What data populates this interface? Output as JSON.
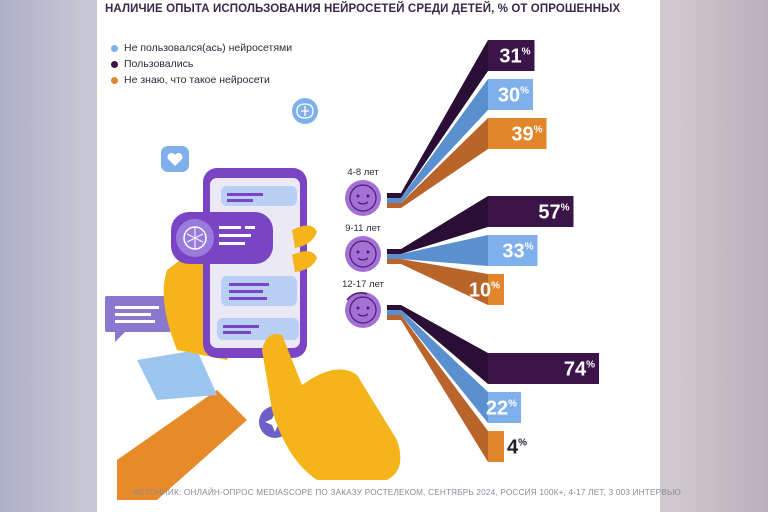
{
  "chart_data": {
    "type": "bar",
    "title": "НАЛИЧИЕ ОПЫТА ИСПОЛЬЗОВАНИЯ НЕЙРОСЕТЕЙ СРЕДИ ДЕТЕЙ, % ОТ ОПРОШЕННЫХ",
    "categories": [
      "4-8 лет",
      "9-11 лет",
      "12-17 лет"
    ],
    "series": [
      {
        "name": "Не пользовался(ась) нейросетями",
        "color": "#7fb0ec",
        "values": [
          30,
          33,
          22
        ]
      },
      {
        "name": "Пользовались",
        "color": "#3b1548",
        "values": [
          31,
          57,
          74
        ]
      },
      {
        "name": "Не знаю, что такое нейросети",
        "color": "#e2862b",
        "values": [
          39,
          10,
          4
        ]
      }
    ],
    "bar_order": [
      "Пользовались",
      "Не пользовался(ась) нейросетями",
      "Не знаю, что такое нейросети"
    ],
    "value_suffix": "%",
    "legend_position": "top-left",
    "source": "ИСТОЧНИК: ОНЛАЙН-ОПРОС MEDIASCOPE ПО ЗАКАЗУ РОСТЕЛЕКОМ, СЕНТЯБРЬ 2024, РОССИЯ 100К+, 4-17 ЛЕТ, 3 003 ИНТЕРВЬЮ"
  },
  "colors": {
    "used": "#3b1548",
    "not_used": "#7fb0ec",
    "dont_know": "#e2862b",
    "accent_purple": "#7a45c4",
    "accent_yellow": "#f4b41a"
  },
  "icons": [
    "heart-icon",
    "brain-icon",
    "sparkle-icon",
    "face-icon",
    "chat-icon"
  ]
}
